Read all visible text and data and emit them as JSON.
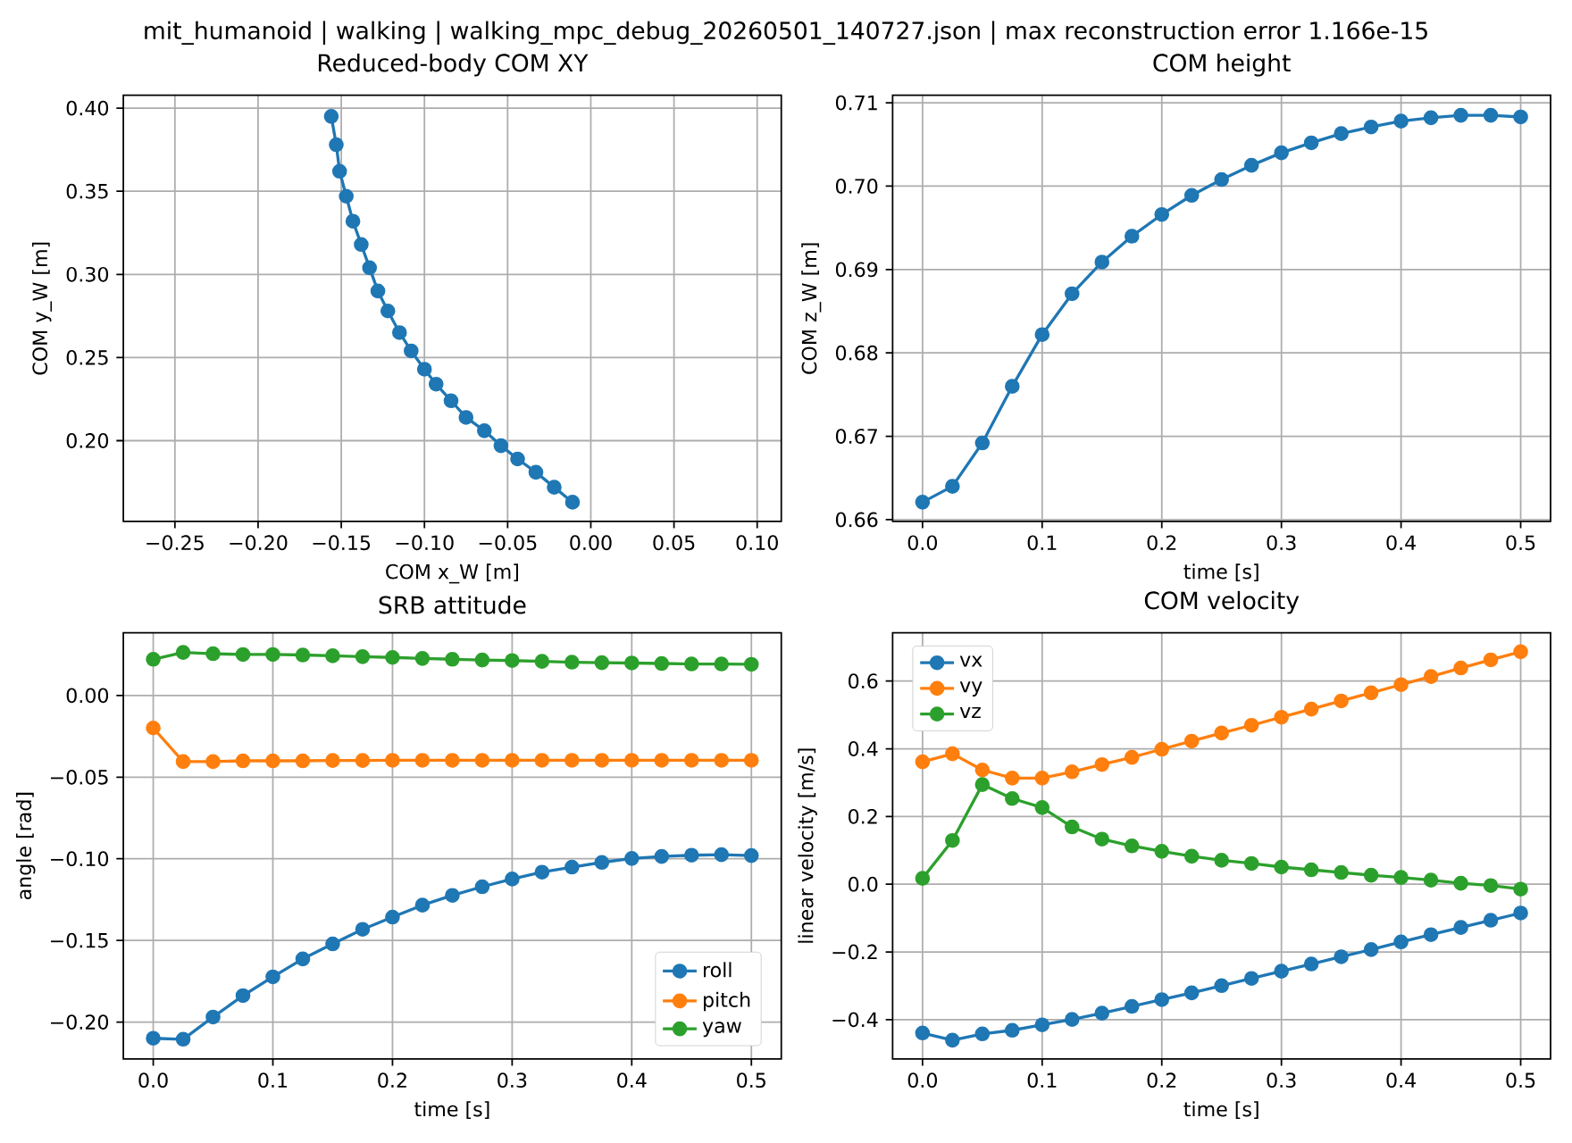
{
  "chart_data": [
    {
      "type": "line",
      "title": "Reduced-body COM XY",
      "xlabel": "COM x_W [m]",
      "ylabel": "COM y_W [m]",
      "annotations": [
        "mit_humanoid | walking | walking_mpc_debug_20260501_140727.json | max reconstruction error 1.166e-15"
      ],
      "grid": true,
      "marker": "circle",
      "xlim": [
        -0.281,
        0.1145
      ],
      "ylim": [
        0.1515,
        0.4077
      ],
      "xticks": [
        {
          "value": -0.25,
          "label": "−0.25"
        },
        {
          "value": -0.2,
          "label": "−0.20"
        },
        {
          "value": -0.15,
          "label": "−0.15"
        },
        {
          "value": -0.1,
          "label": "−0.10"
        },
        {
          "value": -0.05,
          "label": "−0.05"
        },
        {
          "value": 0,
          "label": "0.00"
        },
        {
          "value": 0.05,
          "label": "0.05"
        },
        {
          "value": 0.1,
          "label": "0.10"
        }
      ],
      "yticks": [
        {
          "value": 0.2,
          "label": "0.20"
        },
        {
          "value": 0.25,
          "label": "0.25"
        },
        {
          "value": 0.3,
          "label": "0.30"
        },
        {
          "value": 0.35,
          "label": "0.35"
        },
        {
          "value": 0.4,
          "label": "0.40"
        }
      ],
      "series": [
        {
          "color": "#1f77b4",
          "x": [
            -0.156,
            -0.153,
            -0.151,
            -0.147,
            -0.143,
            -0.138,
            -0.133,
            -0.128,
            -0.122,
            -0.115,
            -0.108,
            -0.1,
            -0.093,
            -0.084,
            -0.075,
            -0.064,
            -0.054,
            -0.044,
            -0.033,
            -0.022,
            -0.011
          ],
          "values": [
            0.395,
            0.378,
            0.362,
            0.347,
            0.332,
            0.318,
            0.304,
            0.29,
            0.278,
            0.265,
            0.254,
            0.243,
            0.234,
            0.224,
            0.214,
            0.206,
            0.197,
            0.189,
            0.181,
            0.172,
            0.163
          ]
        }
      ]
    },
    {
      "type": "line",
      "title": "COM height",
      "xlabel": "time [s]",
      "ylabel": "COM z_W [m]",
      "grid": true,
      "marker": "circle",
      "xlim": [
        -0.025,
        0.525
      ],
      "ylim": [
        0.6598,
        0.7109
      ],
      "x": [
        0,
        0.025,
        0.05,
        0.075,
        0.1,
        0.125,
        0.15,
        0.175,
        0.2,
        0.225,
        0.25,
        0.275,
        0.3,
        0.325,
        0.35,
        0.375,
        0.4,
        0.425,
        0.45,
        0.475,
        0.5
      ],
      "xticks": [
        {
          "value": 0,
          "label": "0.0"
        },
        {
          "value": 0.1,
          "label": "0.1"
        },
        {
          "value": 0.2,
          "label": "0.2"
        },
        {
          "value": 0.3,
          "label": "0.3"
        },
        {
          "value": 0.4,
          "label": "0.4"
        },
        {
          "value": 0.5,
          "label": "0.5"
        }
      ],
      "yticks": [
        0.66,
        0.67,
        0.68,
        0.69,
        {
          "value": 0.7,
          "label": "0.70"
        },
        0.71
      ],
      "series": [
        {
          "color": "#1f77b4",
          "values": [
            0.6621,
            0.664,
            0.6692,
            0.676,
            0.6822,
            0.6871,
            0.6909,
            0.694,
            0.6966,
            0.6989,
            0.7008,
            0.7025,
            0.704,
            0.7052,
            0.7063,
            0.7071,
            0.7078,
            0.7082,
            0.7085,
            0.7085,
            0.7083
          ]
        }
      ]
    },
    {
      "type": "line",
      "title": "SRB attitude",
      "xlabel": "time [s]",
      "ylabel": "angle [rad]",
      "grid": true,
      "marker": "circle",
      "legend": "bottom right",
      "xlim": [
        -0.025,
        0.525
      ],
      "ylim": [
        -0.2225,
        0.0384
      ],
      "x": [
        0,
        0.025,
        0.05,
        0.075,
        0.1,
        0.125,
        0.15,
        0.175,
        0.2,
        0.225,
        0.25,
        0.275,
        0.3,
        0.325,
        0.35,
        0.375,
        0.4,
        0.425,
        0.45,
        0.475,
        0.5
      ],
      "xticks": [
        {
          "value": 0,
          "label": "0.0"
        },
        {
          "value": 0.1,
          "label": "0.1"
        },
        {
          "value": 0.2,
          "label": "0.2"
        },
        {
          "value": 0.3,
          "label": "0.3"
        },
        {
          "value": 0.4,
          "label": "0.4"
        },
        {
          "value": 0.5,
          "label": "0.5"
        }
      ],
      "yticks": [
        {
          "value": -0.2,
          "label": "−0.20"
        },
        {
          "value": -0.15,
          "label": "−0.15"
        },
        {
          "value": -0.1,
          "label": "−0.10"
        },
        {
          "value": -0.05,
          "label": "−0.05"
        },
        {
          "value": 0,
          "label": "0.00"
        }
      ],
      "series": [
        {
          "name": "roll",
          "color": "#1f77b4",
          "values": [
            -0.2099,
            -0.2105,
            -0.1969,
            -0.1838,
            -0.1723,
            -0.1613,
            -0.1521,
            -0.1432,
            -0.1357,
            -0.1284,
            -0.1224,
            -0.1171,
            -0.1124,
            -0.1082,
            -0.1051,
            -0.1022,
            -0.0998,
            -0.0986,
            -0.0978,
            -0.0975,
            -0.098
          ]
        },
        {
          "name": "pitch",
          "color": "#ff7f0e",
          "values": [
            -0.0199,
            -0.0405,
            -0.0405,
            -0.04,
            -0.04,
            -0.04,
            -0.0398,
            -0.0398,
            -0.0397,
            -0.0397,
            -0.0397,
            -0.0397,
            -0.0397,
            -0.0397,
            -0.0397,
            -0.0397,
            -0.0397,
            -0.0397,
            -0.0397,
            -0.0397,
            -0.0397
          ]
        },
        {
          "name": "yaw",
          "color": "#2ca02c",
          "values": [
            0.0222,
            0.0264,
            0.0256,
            0.0251,
            0.0251,
            0.0248,
            0.0243,
            0.0238,
            0.0233,
            0.0227,
            0.0222,
            0.0217,
            0.0214,
            0.0209,
            0.0204,
            0.0201,
            0.0199,
            0.0196,
            0.0193,
            0.0193,
            0.0191
          ]
        }
      ]
    },
    {
      "type": "line",
      "title": "COM velocity",
      "xlabel": "time [s]",
      "ylabel": "linear velocity [m/s]",
      "grid": true,
      "marker": "circle",
      "legend": "top left",
      "xlim": [
        -0.025,
        0.525
      ],
      "ylim": [
        -0.5158,
        0.7425
      ],
      "x": [
        0,
        0.025,
        0.05,
        0.075,
        0.1,
        0.125,
        0.15,
        0.175,
        0.2,
        0.225,
        0.25,
        0.275,
        0.3,
        0.325,
        0.35,
        0.375,
        0.4,
        0.425,
        0.45,
        0.475,
        0.5
      ],
      "xticks": [
        {
          "value": 0,
          "label": "0.0"
        },
        {
          "value": 0.1,
          "label": "0.1"
        },
        {
          "value": 0.2,
          "label": "0.2"
        },
        {
          "value": 0.3,
          "label": "0.3"
        },
        {
          "value": 0.4,
          "label": "0.4"
        },
        {
          "value": 0.5,
          "label": "0.5"
        }
      ],
      "yticks": [
        {
          "value": -0.4,
          "label": "−0.4"
        },
        {
          "value": -0.2,
          "label": "−0.2"
        },
        {
          "value": 0,
          "label": "0.0"
        },
        0.2,
        0.4,
        0.6
      ],
      "series": [
        {
          "name": "vx",
          "color": "#1f77b4",
          "values": [
            -0.4394,
            -0.4607,
            -0.4421,
            -0.4314,
            -0.4154,
            -0.3995,
            -0.3808,
            -0.3609,
            -0.3409,
            -0.3209,
            -0.2996,
            -0.2783,
            -0.257,
            -0.2357,
            -0.2144,
            -0.1931,
            -0.1704,
            -0.1491,
            -0.1278,
            -0.1065,
            -0.0852
          ]
        },
        {
          "name": "vy",
          "color": "#ff7f0e",
          "values": [
            0.3614,
            0.3853,
            0.3374,
            0.3134,
            0.3134,
            0.332,
            0.3534,
            0.3747,
            0.3987,
            0.4226,
            0.4466,
            0.4693,
            0.4932,
            0.5172,
            0.5413,
            0.5653,
            0.5893,
            0.6133,
            0.6386,
            0.6626,
            0.6866
          ]
        },
        {
          "name": "vz",
          "color": "#2ca02c",
          "values": [
            0.0173,
            0.1292,
            0.2943,
            0.253,
            0.2264,
            0.1691,
            0.1332,
            0.1132,
            0.0972,
            0.0826,
            0.0706,
            0.0613,
            0.0506,
            0.0426,
            0.0346,
            0.0266,
            0.02,
            0.012,
            0.0027,
            -0.004,
            -0.0146
          ]
        }
      ]
    }
  ]
}
